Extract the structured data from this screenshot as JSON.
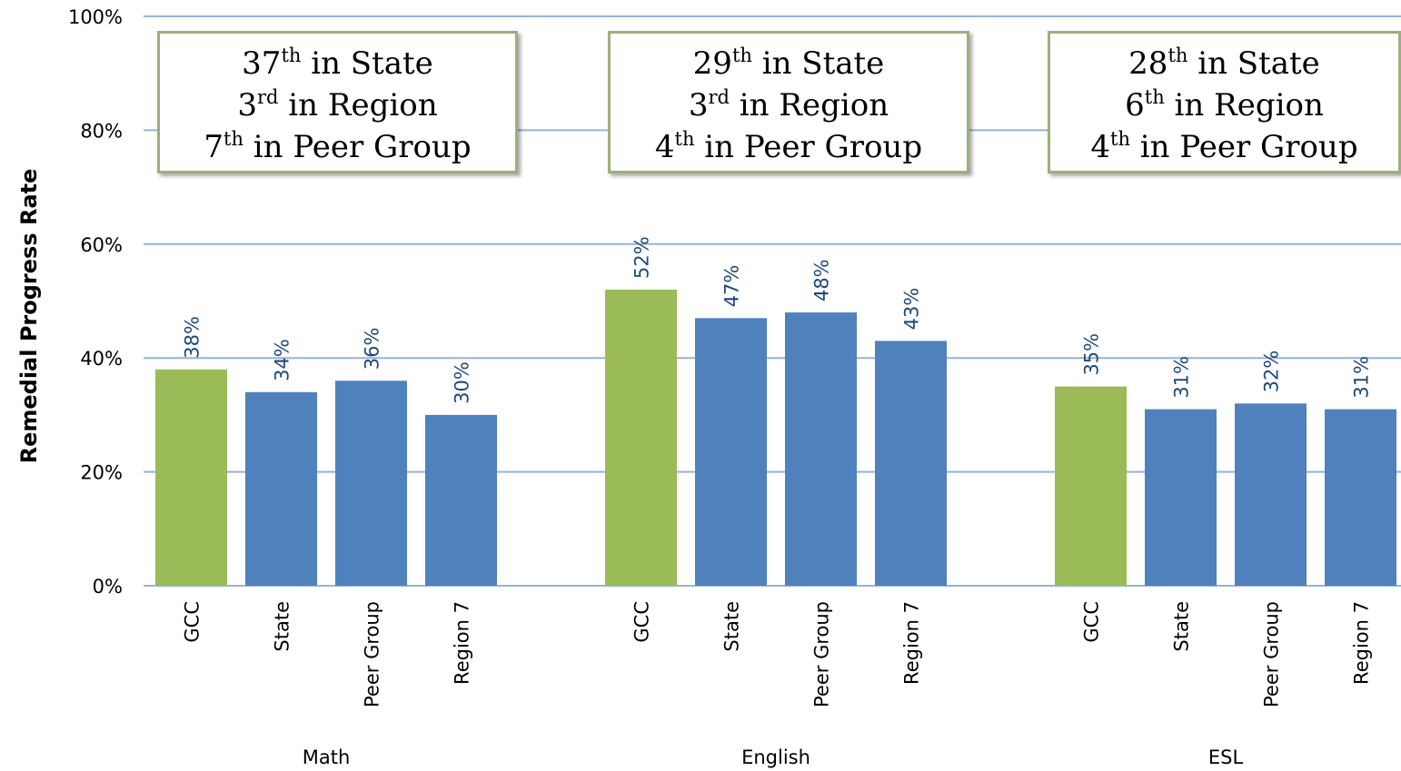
{
  "colors": {
    "highlight": "#9bbb59",
    "bar": "#4f81bd",
    "grid": "#95b3d7",
    "data_label": "#1f497d"
  },
  "chart_data": {
    "type": "bar",
    "ylabel": "Remedial Progress Rate",
    "ylim": [
      0,
      100
    ],
    "yticks": [
      0,
      20,
      40,
      60,
      80,
      100
    ],
    "ytick_labels": [
      "0%",
      "20%",
      "40%",
      "60%",
      "80%",
      "100%"
    ],
    "grid": true,
    "groups": [
      {
        "name": "Math",
        "categories": [
          "GCC",
          "State",
          "Peer Group",
          "Region 7"
        ],
        "values": [
          38,
          34,
          36,
          30
        ],
        "labels": [
          "38%",
          "34%",
          "36%",
          "30%"
        ]
      },
      {
        "name": "English",
        "categories": [
          "GCC",
          "State",
          "Peer Group",
          "Region 7"
        ],
        "values": [
          52,
          47,
          48,
          43
        ],
        "labels": [
          "52%",
          "47%",
          "48%",
          "43%"
        ]
      },
      {
        "name": "ESL",
        "categories": [
          "GCC",
          "State",
          "Peer Group",
          "Region 7"
        ],
        "values": [
          35,
          31,
          32,
          31
        ],
        "labels": [
          "35%",
          "31%",
          "32%",
          "31%"
        ]
      }
    ],
    "annotations": [
      {
        "lines": [
          {
            "num": "37",
            "suffix": "th",
            "text": " in State"
          },
          {
            "num": "3",
            "suffix": "rd",
            "text": " in Region"
          },
          {
            "num": "7",
            "suffix": "th",
            "text": " in Peer Group"
          }
        ]
      },
      {
        "lines": [
          {
            "num": "29",
            "suffix": "th",
            "text": " in State"
          },
          {
            "num": "3",
            "suffix": "rd",
            "text": " in Region"
          },
          {
            "num": "4",
            "suffix": "th",
            "text": " in Peer Group"
          }
        ]
      },
      {
        "lines": [
          {
            "num": "28",
            "suffix": "th",
            "text": " in State"
          },
          {
            "num": "6",
            "suffix": "th",
            "text": " in Region"
          },
          {
            "num": "4",
            "suffix": "th",
            "text": " in Peer Group"
          }
        ]
      }
    ]
  }
}
